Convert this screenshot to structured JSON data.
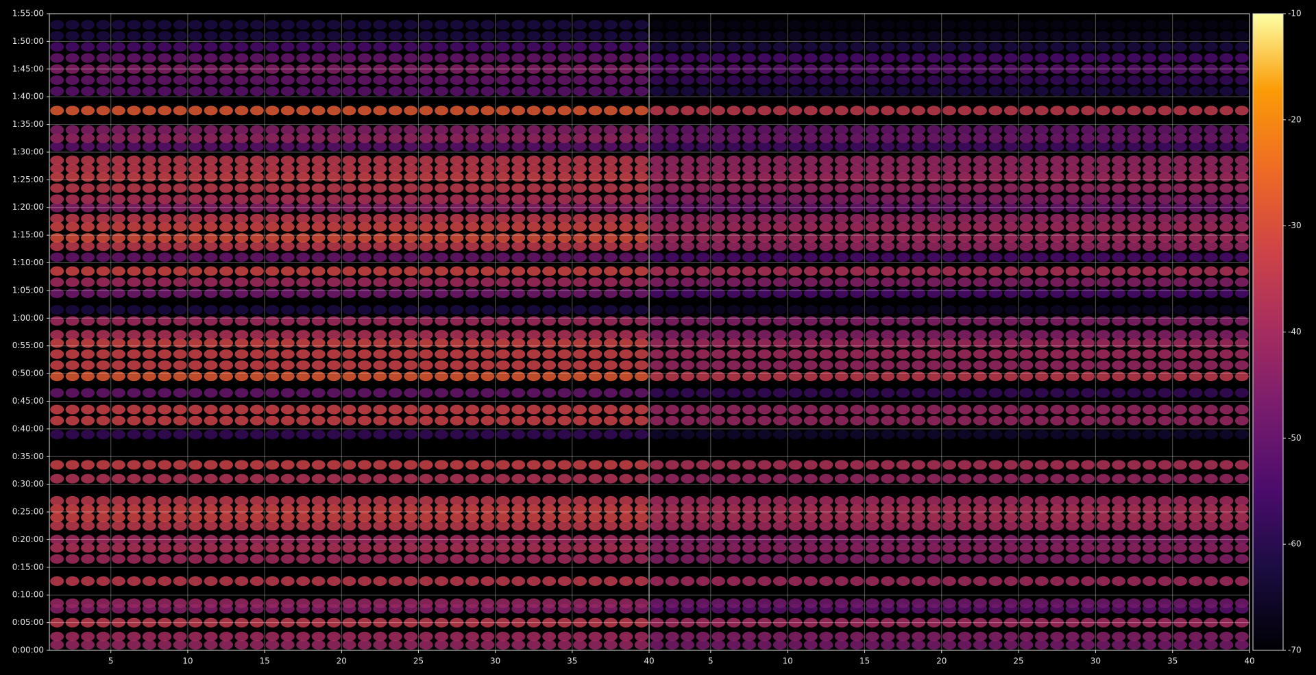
{
  "chart_data": {
    "type": "ellipse-heatmap",
    "colormap": "inferno",
    "grid": true,
    "ylim": [
      0,
      6900
    ],
    "yticks": [
      {
        "value": 0,
        "label": "0:00:00"
      },
      {
        "value": 300,
        "label": "0:05:00"
      },
      {
        "value": 600,
        "label": "0:10:00"
      },
      {
        "value": 900,
        "label": "0:15:00"
      },
      {
        "value": 1200,
        "label": "0:20:00"
      },
      {
        "value": 1500,
        "label": "0:25:00"
      },
      {
        "value": 1800,
        "label": "0:30:00"
      },
      {
        "value": 2100,
        "label": "0:35:00"
      },
      {
        "value": 2400,
        "label": "0:40:00"
      },
      {
        "value": 2700,
        "label": "0:45:00"
      },
      {
        "value": 3000,
        "label": "0:50:00"
      },
      {
        "value": 3300,
        "label": "0:55:00"
      },
      {
        "value": 3600,
        "label": "1:00:00"
      },
      {
        "value": 3900,
        "label": "1:05:00"
      },
      {
        "value": 4200,
        "label": "1:10:00"
      },
      {
        "value": 4500,
        "label": "1:15:00"
      },
      {
        "value": 4800,
        "label": "1:20:00"
      },
      {
        "value": 5100,
        "label": "1:25:00"
      },
      {
        "value": 5400,
        "label": "1:30:00"
      },
      {
        "value": 5700,
        "label": "1:35:00"
      },
      {
        "value": 6000,
        "label": "1:40:00"
      },
      {
        "value": 6300,
        "label": "1:45:00"
      },
      {
        "value": 6600,
        "label": "1:50:00"
      },
      {
        "value": 6900,
        "label": "1:55:00"
      }
    ],
    "clim": [
      -70,
      -10
    ],
    "cticks": [
      -70,
      -60,
      -50,
      -40,
      -30,
      -20,
      -10
    ],
    "panels": [
      {
        "xlim": [
          1,
          40
        ],
        "xticks": [
          5,
          10,
          15,
          20,
          25,
          30,
          35,
          40
        ],
        "rows": {
          "y": [
            60,
            150,
            300,
            450,
            510,
            750,
            990,
            1110,
            1200,
            1350,
            1440,
            1530,
            1620,
            1860,
            2010,
            2340,
            2490,
            2610,
            2790,
            2970,
            3090,
            3210,
            3330,
            3420,
            3570,
            3690,
            3870,
            3990,
            4110,
            4260,
            4380,
            4470,
            4590,
            4680,
            4800,
            4890,
            5010,
            5130,
            5220,
            5310,
            5460,
            5550,
            5640,
            5850,
            6060,
            6180,
            6300,
            6420,
            6540,
            6660,
            6780
          ],
          "values": [
            -42,
            -40,
            -35,
            -45,
            -42,
            -35,
            -40,
            -38,
            -40,
            -35,
            -32,
            -32,
            -35,
            -37,
            -33,
            -58,
            -33,
            -33,
            -50,
            -28,
            -33,
            -33,
            -32,
            -38,
            -40,
            -62,
            -48,
            -40,
            -32,
            -50,
            -35,
            -30,
            -32,
            -35,
            -45,
            -38,
            -35,
            -33,
            -35,
            -35,
            -52,
            -42,
            -45,
            -28,
            -52,
            -50,
            -45,
            -50,
            -55,
            -62,
            -62
          ]
        }
      },
      {
        "xlim": [
          1,
          40
        ],
        "xticks": [
          5,
          10,
          15,
          20,
          25,
          30,
          35,
          40
        ],
        "rows": {
          "y": [
            60,
            150,
            300,
            450,
            510,
            750,
            990,
            1110,
            1200,
            1350,
            1440,
            1530,
            1620,
            1860,
            2010,
            2340,
            2490,
            2610,
            2790,
            2970,
            3090,
            3210,
            3330,
            3420,
            3570,
            3690,
            3870,
            3990,
            4110,
            4260,
            4380,
            4470,
            4590,
            4680,
            4800,
            4890,
            5010,
            5130,
            5220,
            5310,
            5460,
            5550,
            5640,
            5850,
            6060,
            6180,
            6300,
            6420,
            6540,
            6660,
            6780
          ],
          "values": [
            -47,
            -45,
            -40,
            -52,
            -48,
            -40,
            -45,
            -43,
            -45,
            -40,
            -38,
            -38,
            -40,
            -42,
            -38,
            -65,
            -42,
            -42,
            -58,
            -35,
            -42,
            -40,
            -40,
            -45,
            -45,
            -66,
            -55,
            -45,
            -38,
            -55,
            -42,
            -40,
            -40,
            -42,
            -50,
            -45,
            -42,
            -40,
            -42,
            -42,
            -56,
            -48,
            -50,
            -35,
            -62,
            -58,
            -52,
            -55,
            -62,
            -66,
            -68
          ]
        }
      }
    ]
  }
}
